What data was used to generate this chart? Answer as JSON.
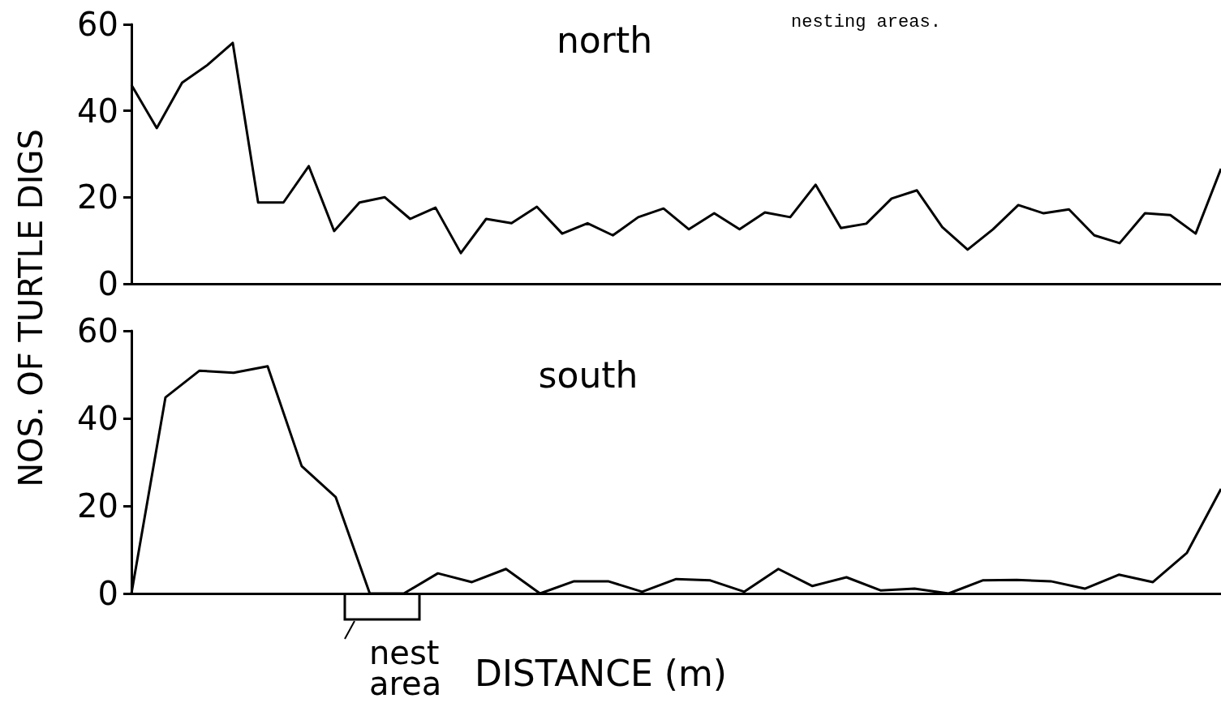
{
  "chart_data": [
    {
      "type": "line",
      "title": "north",
      "ylabel": "NOS. OF TURTLE DIGS",
      "annotations": [
        "nesting areas."
      ],
      "categories": [
        null,
        null,
        null,
        null,
        null,
        null,
        null,
        null,
        null,
        null,
        null,
        null,
        null,
        null,
        null,
        null,
        null,
        null,
        null,
        null,
        null,
        null,
        null,
        null,
        null,
        null,
        null,
        null,
        null,
        null,
        null,
        null,
        null,
        null,
        null,
        null,
        null,
        null,
        null,
        null,
        null,
        null,
        null,
        null
      ],
      "series": [
        {
          "color": "#000000",
          "values": [
            46,
            36,
            46.5,
            50.6,
            55.7,
            18.8,
            18.8,
            27.2,
            12.2,
            18.8,
            20,
            15,
            17.6,
            7.1,
            15,
            14,
            17.8,
            11.6,
            14,
            11.2,
            15.4,
            17.4,
            12.6,
            16.3,
            12.6,
            16.5,
            15.4,
            22.9,
            12.9,
            13.9,
            19.7,
            21.6,
            13.1,
            7.9,
            12.6,
            18.2,
            16.3,
            17.2,
            11.2,
            9.4,
            16.3,
            15.9,
            11.6,
            26.6
          ]
        }
      ],
      "ylim": [
        0,
        60
      ],
      "yticks": [
        0,
        20,
        40,
        60
      ],
      "grid": false,
      "tick_labels": "y",
      "marker": "none",
      "line_style": "solid"
    },
    {
      "type": "line",
      "title": "south",
      "xlabel": "DISTANCE (m)",
      "annotations": [
        "nest area"
      ],
      "categories": [
        null,
        null,
        null,
        null,
        null,
        null,
        null,
        null,
        null,
        null,
        null,
        null,
        null,
        null,
        null,
        null,
        null,
        null,
        null,
        null,
        null,
        null,
        null,
        null,
        null,
        null,
        null,
        null,
        null,
        null,
        null,
        null,
        null
      ],
      "series": [
        {
          "color": "#000000",
          "values": [
            0,
            44.8,
            50.9,
            50.4,
            51.9,
            29.1,
            22,
            0,
            0,
            4.6,
            2.6,
            5.6,
            0,
            2.8,
            2.8,
            0.4,
            3.3,
            3,
            0.4,
            5.6,
            1.7,
            3.7,
            0.7,
            1.1,
            0,
            3,
            3.1,
            2.8,
            1.1,
            4.3,
            2.6,
            9.3,
            23.9
          ]
        }
      ],
      "ylim": [
        0,
        60
      ],
      "yticks": [
        0,
        20,
        40,
        60
      ],
      "grid": false,
      "tick_labels": "y",
      "marker": "none",
      "line_style": "solid"
    }
  ]
}
